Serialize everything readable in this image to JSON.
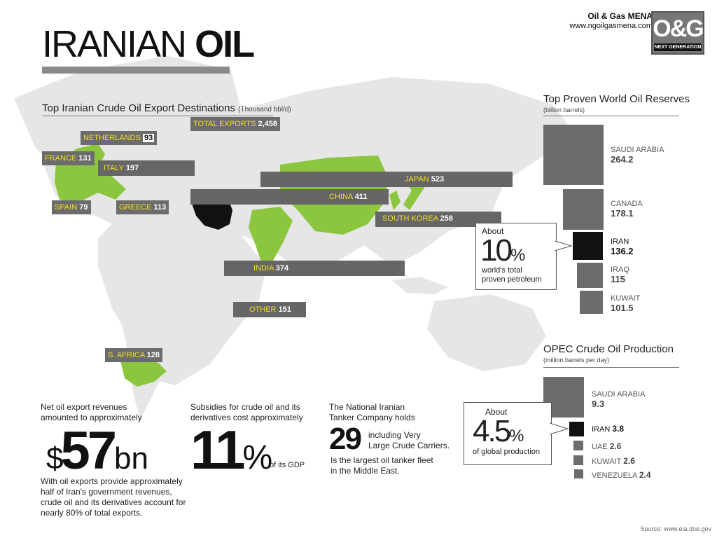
{
  "header": {
    "title_light": "IRANIAN",
    "title_bold": "OIL",
    "brand_name": "Oil & Gas MENA",
    "brand_url": "www.ngoilgasmena.com",
    "logo_text": "O&G",
    "logo_sub": "NEXT GENERATION"
  },
  "exports": {
    "title": "Top Iranian Crude Oil Export Destinations",
    "unit": "(Thousand bbl/d)",
    "total": {
      "label": "TOTAL EXPORTS",
      "value": "2,458"
    },
    "destinations": [
      {
        "name": "NETHERLANDS",
        "value": "93"
      },
      {
        "name": "FRANCE",
        "value": "131"
      },
      {
        "name": "ITALY",
        "value": "197"
      },
      {
        "name": "SPAIN",
        "value": "79"
      },
      {
        "name": "GREECE",
        "value": "113"
      },
      {
        "name": "JAPAN",
        "value": "523"
      },
      {
        "name": "CHINA",
        "value": "411"
      },
      {
        "name": "SOUTH KOREA",
        "value": "258"
      },
      {
        "name": "INDIA",
        "value": "374"
      },
      {
        "name": "OTHER",
        "value": "151"
      },
      {
        "name": "S. AFRICA",
        "value": "128"
      }
    ]
  },
  "reserves": {
    "title": "Top Proven World Oil Reserves",
    "unit": "(billion barrels)",
    "items": [
      {
        "name": "SAUDI ARABIA",
        "value": "264.2",
        "num": 264.2
      },
      {
        "name": "CANADA",
        "value": "178.1",
        "num": 178.1
      },
      {
        "name": "IRAN",
        "value": "136.2",
        "num": 136.2
      },
      {
        "name": "IRAQ",
        "value": "115",
        "num": 115
      },
      {
        "name": "KUWAIT",
        "value": "101.5",
        "num": 101.5
      }
    ],
    "callout": {
      "prefix": "About",
      "number": "10",
      "pct": "%",
      "line1": "world's total",
      "line2": "proven petroleum"
    }
  },
  "opec": {
    "title": "OPEC Crude Oil Production",
    "unit": "(million barrels per day)",
    "items": [
      {
        "name": "SAUDI ARABIA",
        "value": "9.3",
        "num": 9.3
      },
      {
        "name": "IRAN",
        "value": "3.8",
        "num": 3.8
      },
      {
        "name": "UAE",
        "value": "2.6",
        "num": 2.6
      },
      {
        "name": "KUWAIT",
        "value": "2.6",
        "num": 2.6
      },
      {
        "name": "VENEZUELA",
        "value": "2.4",
        "num": 2.4
      }
    ],
    "callout": {
      "prefix": "About",
      "number": "4.5",
      "pct": "%",
      "line": "of global production"
    }
  },
  "stats": {
    "revenue": {
      "intro1": "Net oil export revenues",
      "intro2": "amounted to approximately",
      "dollar": "$",
      "number": "57",
      "suffix": "bn",
      "desc1": "With oil exports provide approximately",
      "desc2": "half of Iran's government revenues,",
      "desc3": "crude oil and its derivatives account for",
      "desc4": "nearly 80% of total exports."
    },
    "subsidies": {
      "intro1": "Subsidies for crude oil and its",
      "intro2": "derivatives cost approximately",
      "number": "11",
      "pct": "%",
      "suffix": "of its GDP"
    },
    "tankers": {
      "intro1": "The National Iranian",
      "intro2": "Tanker Company holds",
      "number": "29",
      "side1": "including Very",
      "side2": "Large Crude Carriers.",
      "desc1": "Is the largest oil tanker fleet",
      "desc2": "in the Middle East."
    }
  },
  "source": "Source: www.eia.doe.gov",
  "colors": {
    "green": "#8cc63f",
    "map_gray": "#e3e3e3",
    "label_gray": "#6c6c6c",
    "highlight_yellow": "#f2e020",
    "iran_black": "#111111"
  }
}
